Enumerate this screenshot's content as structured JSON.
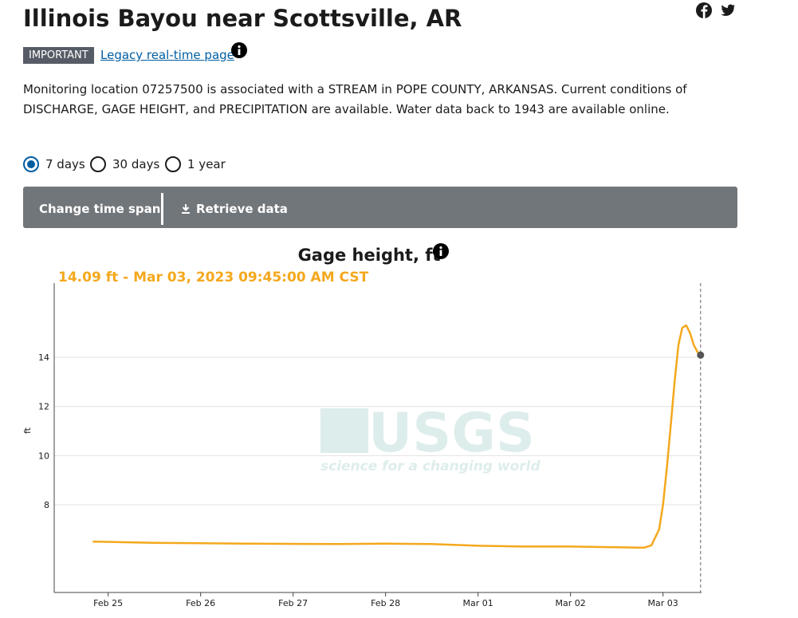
{
  "header": {
    "title": "Illinois Bayou near Scottsville, AR",
    "badge": "IMPORTANT",
    "link": "Legacy real-time page"
  },
  "description": "Monitoring location 07257500 is associated with a STREAM in POPE COUNTY, ARKANSAS. Current conditions of DISCHARGE, GAGE HEIGHT, and PRECIPITATION are available. Water data back to 1943 are available online.",
  "time_options": [
    "7 days",
    "30 days",
    "1 year"
  ],
  "toolbar": {
    "change": "Change time span",
    "retrieve": "Retrieve data"
  },
  "watermark": {
    "logo": "USGS",
    "tagline": "science for a changing world"
  },
  "chart_data": {
    "type": "line",
    "title": "Gage height, ft",
    "annotation": "14.09 ft - Mar 03, 2023 09:45:00 AM CST",
    "ylabel": "ft",
    "color": "#f4a81d",
    "x": [
      "2023-02-24T20:00",
      "2023-02-25T12:00",
      "2023-02-26T12:00",
      "2023-02-27T12:00",
      "2023-02-28T00:00",
      "2023-02-28T12:00",
      "2023-03-01T00:00",
      "2023-03-01T12:00",
      "2023-03-02T00:00",
      "2023-03-02T12:00",
      "2023-03-02T19:00",
      "2023-03-02T21:00",
      "2023-03-02T23:00",
      "2023-03-03T00:00",
      "2023-03-03T01:00",
      "2023-03-03T02:00",
      "2023-03-03T03:00",
      "2023-03-03T04:00",
      "2023-03-03T05:00",
      "2023-03-03T06:00",
      "2023-03-03T07:00",
      "2023-03-03T08:00",
      "2023-03-03T09:00",
      "2023-03-03T09:45"
    ],
    "values": [
      6.5,
      6.45,
      6.42,
      6.4,
      6.42,
      6.4,
      6.33,
      6.3,
      6.3,
      6.27,
      6.25,
      6.35,
      7.0,
      8.0,
      9.5,
      11.2,
      13.0,
      14.5,
      15.2,
      15.3,
      15.0,
      14.5,
      14.2,
      14.09
    ],
    "xlim": [
      "2023-02-24T10:00",
      "2023-03-03T10:00"
    ],
    "xticks": [
      {
        "value": "2023-02-25T00:00",
        "label": "Feb 25"
      },
      {
        "value": "2023-02-26T00:00",
        "label": "Feb 26"
      },
      {
        "value": "2023-02-27T00:00",
        "label": "Feb 27"
      },
      {
        "value": "2023-02-28T00:00",
        "label": "Feb 28"
      },
      {
        "value": "2023-03-01T00:00",
        "label": "Mar 01"
      },
      {
        "value": "2023-03-02T00:00",
        "label": "Mar 02"
      },
      {
        "value": "2023-03-03T00:00",
        "label": "Mar 03"
      }
    ],
    "ylim": [
      4.43,
      17.02
    ],
    "yticks": [
      8,
      10,
      12,
      14
    ],
    "grid": true
  }
}
